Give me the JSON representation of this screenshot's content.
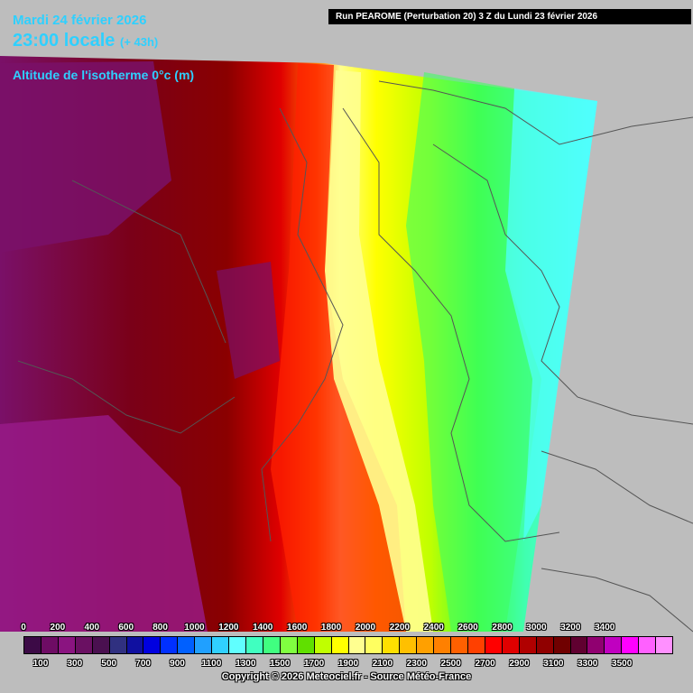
{
  "header": {
    "date": "Mardi 24 février 2026",
    "time": "23:00 locale",
    "lead": "(+ 43h)",
    "variable": "Altitude de l'isotherme 0°c (m)",
    "run": "Run PEAROME (Perturbation 20) 3 Z du Lundi 23 février 2026"
  },
  "legend": {
    "top_labels": [
      "0",
      "200",
      "400",
      "600",
      "800",
      "1000",
      "1200",
      "1400",
      "1600",
      "1800",
      "2000",
      "2200",
      "2400",
      "2600",
      "2800",
      "3000",
      "3200",
      "3400"
    ],
    "bottom_labels": [
      "100",
      "300",
      "500",
      "700",
      "900",
      "1100",
      "1300",
      "1500",
      "1700",
      "1900",
      "2100",
      "2300",
      "2500",
      "2700",
      "2900",
      "3100",
      "3300",
      "3500"
    ],
    "colors": [
      "#3c0a46",
      "#6e0c64",
      "#8a1480",
      "#6a1062",
      "#4a1050",
      "#303080",
      "#1010a0",
      "#0000e0",
      "#0030ff",
      "#0060ff",
      "#20a0ff",
      "#30d0ff",
      "#60ffff",
      "#40ffc0",
      "#40ff80",
      "#80ff40",
      "#60e000",
      "#c0ff00",
      "#ffff00",
      "#ffff90",
      "#ffff60",
      "#ffe000",
      "#ffc000",
      "#ffa000",
      "#ff8000",
      "#ff6000",
      "#ff4000",
      "#ff0000",
      "#e00000",
      "#b00000",
      "#900000",
      "#700000",
      "#600030",
      "#900070",
      "#c000c0",
      "#ff00ff",
      "#ff60ff",
      "#ff90ff"
    ]
  },
  "footer": {
    "copyright": "Copyright © 2026 Meteociel.fr - Source Météo-France"
  }
}
